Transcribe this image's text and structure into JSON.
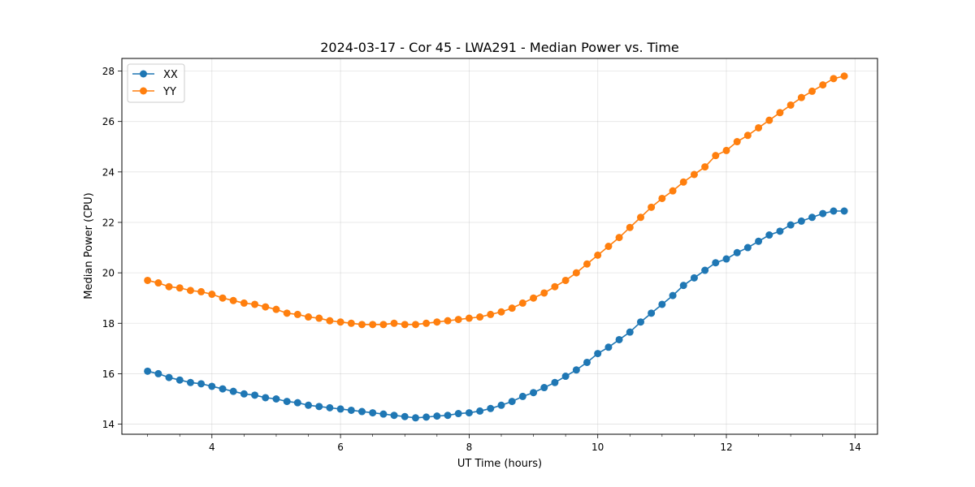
{
  "chart_data": {
    "type": "line",
    "title": "2024-03-17 - Cor 45 - LWA291 - Median Power vs. Time",
    "xlabel": "UT Time (hours)",
    "ylabel": "Median Power (CPU)",
    "xlim": [
      2.6,
      14.35
    ],
    "ylim": [
      13.6,
      28.5
    ],
    "xticks": [
      4,
      6,
      8,
      10,
      12,
      14
    ],
    "xtick_labels": [
      "4",
      "6",
      "8",
      "10",
      "12",
      "14"
    ],
    "yticks": [
      14,
      16,
      18,
      20,
      22,
      24,
      26,
      28
    ],
    "ytick_labels": [
      "14",
      "16",
      "18",
      "20",
      "22",
      "24",
      "26",
      "28"
    ],
    "grid": true,
    "legend_position": "top-left",
    "x": [
      3.0,
      3.167,
      3.333,
      3.5,
      3.667,
      3.833,
      4.0,
      4.167,
      4.333,
      4.5,
      4.667,
      4.833,
      5.0,
      5.167,
      5.333,
      5.5,
      5.667,
      5.833,
      6.0,
      6.167,
      6.333,
      6.5,
      6.667,
      6.833,
      7.0,
      7.167,
      7.333,
      7.5,
      7.667,
      7.833,
      8.0,
      8.167,
      8.333,
      8.5,
      8.667,
      8.833,
      9.0,
      9.167,
      9.333,
      9.5,
      9.667,
      9.833,
      10.0,
      10.167,
      10.333,
      10.5,
      10.667,
      10.833,
      11.0,
      11.167,
      11.333,
      11.5,
      11.667,
      11.833,
      12.0,
      12.167,
      12.333,
      12.5,
      12.667,
      12.833,
      13.0,
      13.167,
      13.333,
      13.5,
      13.667,
      13.833
    ],
    "series": [
      {
        "name": "XX",
        "color": "#1f77b4",
        "values": [
          16.1,
          16.0,
          15.85,
          15.75,
          15.65,
          15.6,
          15.5,
          15.4,
          15.3,
          15.2,
          15.15,
          15.05,
          15.0,
          14.9,
          14.85,
          14.75,
          14.7,
          14.65,
          14.6,
          14.55,
          14.5,
          14.45,
          14.4,
          14.35,
          14.3,
          14.25,
          14.28,
          14.32,
          14.35,
          14.42,
          14.45,
          14.52,
          14.62,
          14.75,
          14.9,
          15.1,
          15.25,
          15.45,
          15.65,
          15.9,
          16.15,
          16.45,
          16.8,
          17.05,
          17.35,
          17.65,
          18.05,
          18.4,
          18.75,
          19.1,
          19.5,
          19.8,
          20.1,
          20.4,
          20.55,
          20.8,
          21.0,
          21.25,
          21.5,
          21.65,
          21.9,
          22.05,
          22.2,
          22.35,
          22.45,
          22.45
        ]
      },
      {
        "name": "YY",
        "color": "#ff7f0e",
        "values": [
          19.7,
          19.6,
          19.45,
          19.4,
          19.3,
          19.25,
          19.15,
          19.0,
          18.9,
          18.8,
          18.75,
          18.65,
          18.55,
          18.4,
          18.35,
          18.25,
          18.2,
          18.1,
          18.05,
          18.0,
          17.95,
          17.95,
          17.95,
          18.0,
          17.95,
          17.95,
          18.0,
          18.05,
          18.1,
          18.15,
          18.2,
          18.25,
          18.35,
          18.45,
          18.6,
          18.8,
          19.0,
          19.2,
          19.45,
          19.7,
          20.0,
          20.35,
          20.7,
          21.05,
          21.4,
          21.8,
          22.2,
          22.6,
          22.95,
          23.25,
          23.6,
          23.9,
          24.2,
          24.65,
          24.85,
          25.2,
          25.45,
          25.75,
          26.05,
          26.35,
          26.65,
          26.95,
          27.2,
          27.45,
          27.7,
          27.8
        ]
      }
    ]
  }
}
